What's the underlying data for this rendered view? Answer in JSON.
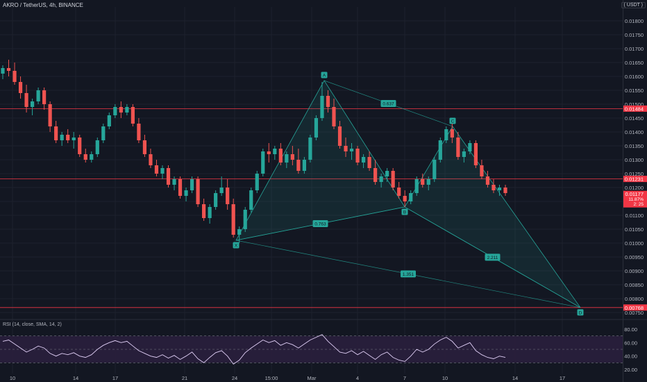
{
  "header": {
    "symbol": "AKRO / TetherUS, 4h, BINANCE",
    "currency": "( USDT )"
  },
  "rsi_header": "RSI (14, close, SMA, 14, 2)",
  "colors": {
    "background": "#131722",
    "up": "#26a69a",
    "down": "#ef5350",
    "grid": "#1e222d",
    "pattern_fill": "#26a69a",
    "pattern_line": "#26a69a",
    "hline": "#f23645",
    "rsi_line": "#e1d0f7",
    "rsi_band": "#2a1f3d"
  },
  "chart_data": [
    {
      "type": "candlestick",
      "title": "AKRO / TetherUS, 4h, BINANCE",
      "ylabel": "USDT",
      "ylim": [
        0.0073,
        0.0185
      ],
      "y_ticks": [
        "0.01800",
        "0.01750",
        "0.01700",
        "0.01650",
        "0.01600",
        "0.01550",
        "0.01500",
        "0.01450",
        "0.01400",
        "0.01350",
        "0.01300",
        "0.01250",
        "0.01200",
        "0.01150",
        "0.01100",
        "0.01050",
        "0.01000",
        "0.00950",
        "0.00900",
        "0.00850",
        "0.00800",
        "0.00750"
      ],
      "x_ticks": [
        "10",
        "14",
        "17",
        "21",
        "24",
        "15:00",
        "Mar",
        "4",
        "7",
        "10",
        "14",
        "17"
      ],
      "price_labels": [
        {
          "text": "0.01484",
          "value": 0.01484,
          "color": "#f23645"
        },
        {
          "text": "0.01231",
          "value": 0.01231,
          "color": "#f23645"
        },
        {
          "text": "0.01177",
          "value": 0.01177,
          "color": "#f23645",
          "extra": [
            "11.87%",
            "2: 25"
          ]
        },
        {
          "text": "0.00768",
          "value": 0.00768,
          "color": "#f23645"
        }
      ],
      "horizontal_lines": [
        0.01484,
        0.01231,
        0.00768
      ],
      "candles_ohlc": [
        [
          0.0161,
          0.0164,
          0.0159,
          0.0163
        ],
        [
          0.0163,
          0.0166,
          0.016,
          0.0162
        ],
        [
          0.0162,
          0.0165,
          0.0157,
          0.0158
        ],
        [
          0.0158,
          0.016,
          0.0152,
          0.0154
        ],
        [
          0.0154,
          0.0157,
          0.0147,
          0.0149
        ],
        [
          0.0149,
          0.0152,
          0.0146,
          0.0151
        ],
        [
          0.0151,
          0.0156,
          0.015,
          0.0155
        ],
        [
          0.0155,
          0.0156,
          0.0148,
          0.015
        ],
        [
          0.015,
          0.0151,
          0.014,
          0.0142
        ],
        [
          0.0142,
          0.0144,
          0.0136,
          0.0137
        ],
        [
          0.0137,
          0.014,
          0.0135,
          0.0139
        ],
        [
          0.0139,
          0.0141,
          0.0136,
          0.0137
        ],
        [
          0.0137,
          0.014,
          0.0134,
          0.0138
        ],
        [
          0.0138,
          0.0139,
          0.0131,
          0.0132
        ],
        [
          0.0132,
          0.0134,
          0.0129,
          0.013
        ],
        [
          0.013,
          0.0133,
          0.0129,
          0.0132
        ],
        [
          0.0132,
          0.0138,
          0.0131,
          0.0137
        ],
        [
          0.0137,
          0.0143,
          0.0136,
          0.0142
        ],
        [
          0.0142,
          0.0147,
          0.0141,
          0.0146
        ],
        [
          0.0146,
          0.015,
          0.0145,
          0.0149
        ],
        [
          0.0149,
          0.0151,
          0.0145,
          0.0147
        ],
        [
          0.0147,
          0.015,
          0.0146,
          0.0149
        ],
        [
          0.0149,
          0.015,
          0.0142,
          0.0143
        ],
        [
          0.0143,
          0.0145,
          0.0136,
          0.0137
        ],
        [
          0.0137,
          0.0139,
          0.0131,
          0.0132
        ],
        [
          0.0132,
          0.0134,
          0.0127,
          0.0128
        ],
        [
          0.0128,
          0.013,
          0.0124,
          0.0125
        ],
        [
          0.0125,
          0.0128,
          0.0123,
          0.0127
        ],
        [
          0.0127,
          0.0128,
          0.012,
          0.0121
        ],
        [
          0.0121,
          0.0124,
          0.0119,
          0.0123
        ],
        [
          0.0123,
          0.0124,
          0.0116,
          0.0117
        ],
        [
          0.0117,
          0.012,
          0.0115,
          0.0119
        ],
        [
          0.0119,
          0.0124,
          0.0118,
          0.0123
        ],
        [
          0.0123,
          0.0124,
          0.0113,
          0.0114
        ],
        [
          0.0114,
          0.0116,
          0.0108,
          0.0109
        ],
        [
          0.0109,
          0.0114,
          0.0107,
          0.0113
        ],
        [
          0.0113,
          0.0119,
          0.0112,
          0.0118
        ],
        [
          0.0118,
          0.0124,
          0.0117,
          0.012
        ],
        [
          0.012,
          0.0123,
          0.0112,
          0.0114
        ],
        [
          0.0114,
          0.0116,
          0.0102,
          0.0103
        ],
        [
          0.0103,
          0.0106,
          0.01,
          0.0105
        ],
        [
          0.0105,
          0.0113,
          0.0104,
          0.0112
        ],
        [
          0.0112,
          0.012,
          0.0111,
          0.0119
        ],
        [
          0.0119,
          0.0126,
          0.0118,
          0.0125
        ],
        [
          0.0125,
          0.0134,
          0.0124,
          0.0133
        ],
        [
          0.0133,
          0.0136,
          0.0129,
          0.0132
        ],
        [
          0.0132,
          0.0135,
          0.013,
          0.0134
        ],
        [
          0.0134,
          0.0136,
          0.0128,
          0.0129
        ],
        [
          0.0129,
          0.0133,
          0.0127,
          0.0132
        ],
        [
          0.0132,
          0.0135,
          0.0128,
          0.013
        ],
        [
          0.013,
          0.0134,
          0.0125,
          0.0126
        ],
        [
          0.0126,
          0.0131,
          0.0125,
          0.013
        ],
        [
          0.013,
          0.0139,
          0.0129,
          0.0138
        ],
        [
          0.0138,
          0.0146,
          0.0137,
          0.0145
        ],
        [
          0.0145,
          0.0158,
          0.0144,
          0.0153
        ],
        [
          0.0153,
          0.0155,
          0.0147,
          0.0149
        ],
        [
          0.0149,
          0.0152,
          0.0141,
          0.0142
        ],
        [
          0.0142,
          0.0144,
          0.0134,
          0.0135
        ],
        [
          0.0135,
          0.0138,
          0.0131,
          0.0133
        ],
        [
          0.0133,
          0.0136,
          0.013,
          0.0134
        ],
        [
          0.0134,
          0.0135,
          0.0128,
          0.0129
        ],
        [
          0.0129,
          0.0132,
          0.0127,
          0.0131
        ],
        [
          0.0131,
          0.0133,
          0.0126,
          0.0127
        ],
        [
          0.0127,
          0.013,
          0.0121,
          0.0122
        ],
        [
          0.0122,
          0.0125,
          0.012,
          0.0124
        ],
        [
          0.0124,
          0.0127,
          0.0122,
          0.0126
        ],
        [
          0.0126,
          0.0127,
          0.0119,
          0.012
        ],
        [
          0.012,
          0.0122,
          0.0116,
          0.0117
        ],
        [
          0.0117,
          0.0119,
          0.0113,
          0.0115
        ],
        [
          0.0115,
          0.0119,
          0.0114,
          0.0118
        ],
        [
          0.0118,
          0.0124,
          0.0117,
          0.0123
        ],
        [
          0.0123,
          0.0125,
          0.012,
          0.0121
        ],
        [
          0.0121,
          0.0124,
          0.0119,
          0.0123
        ],
        [
          0.0123,
          0.0131,
          0.0122,
          0.013
        ],
        [
          0.013,
          0.0138,
          0.0129,
          0.0137
        ],
        [
          0.0137,
          0.0142,
          0.0136,
          0.0141
        ],
        [
          0.0141,
          0.0143,
          0.0136,
          0.0138
        ],
        [
          0.0138,
          0.014,
          0.013,
          0.0131
        ],
        [
          0.0131,
          0.0134,
          0.0129,
          0.0133
        ],
        [
          0.0133,
          0.0137,
          0.0132,
          0.0136
        ],
        [
          0.0136,
          0.0137,
          0.0127,
          0.0128
        ],
        [
          0.0128,
          0.013,
          0.0123,
          0.0124
        ],
        [
          0.0124,
          0.0126,
          0.012,
          0.0121
        ],
        [
          0.0121,
          0.0123,
          0.0118,
          0.0119
        ],
        [
          0.0119,
          0.0121,
          0.0117,
          0.012
        ],
        [
          0.012,
          0.0121,
          0.0117,
          0.0118
        ]
      ]
    },
    {
      "type": "harmonic-pattern",
      "points": [
        {
          "label": "X",
          "value": 0.0101
        },
        {
          "label": "A",
          "value": 0.01585
        },
        {
          "label": "B",
          "value": 0.0113
        },
        {
          "label": "C",
          "value": 0.0142
        },
        {
          "label": "D",
          "value": 0.00768
        }
      ],
      "ratios": [
        {
          "text": "0.763",
          "between": "XB"
        },
        {
          "text": "0.637",
          "between": "AC"
        },
        {
          "text": "2.211",
          "between": "BD"
        },
        {
          "text": "1.351",
          "between": "XD"
        }
      ]
    },
    {
      "type": "line",
      "title": "RSI (14, close, SMA, 14, 2)",
      "ylim": [
        20,
        80
      ],
      "y_ticks": [
        "80.00",
        "60.00",
        "40.00",
        "20.00"
      ],
      "band": [
        30,
        70
      ],
      "values": [
        62,
        64,
        58,
        52,
        46,
        50,
        55,
        52,
        44,
        40,
        44,
        42,
        45,
        40,
        38,
        42,
        50,
        56,
        60,
        63,
        60,
        62,
        55,
        48,
        44,
        40,
        38,
        42,
        37,
        41,
        35,
        40,
        46,
        36,
        30,
        38,
        45,
        48,
        40,
        28,
        34,
        45,
        52,
        58,
        64,
        60,
        63,
        56,
        60,
        57,
        52,
        58,
        64,
        68,
        72,
        62,
        54,
        46,
        44,
        48,
        42,
        47,
        41,
        35,
        42,
        46,
        38,
        34,
        32,
        40,
        50,
        46,
        50,
        58,
        64,
        68,
        62,
        52,
        56,
        60,
        48,
        42,
        38,
        36,
        40,
        38
      ]
    }
  ]
}
